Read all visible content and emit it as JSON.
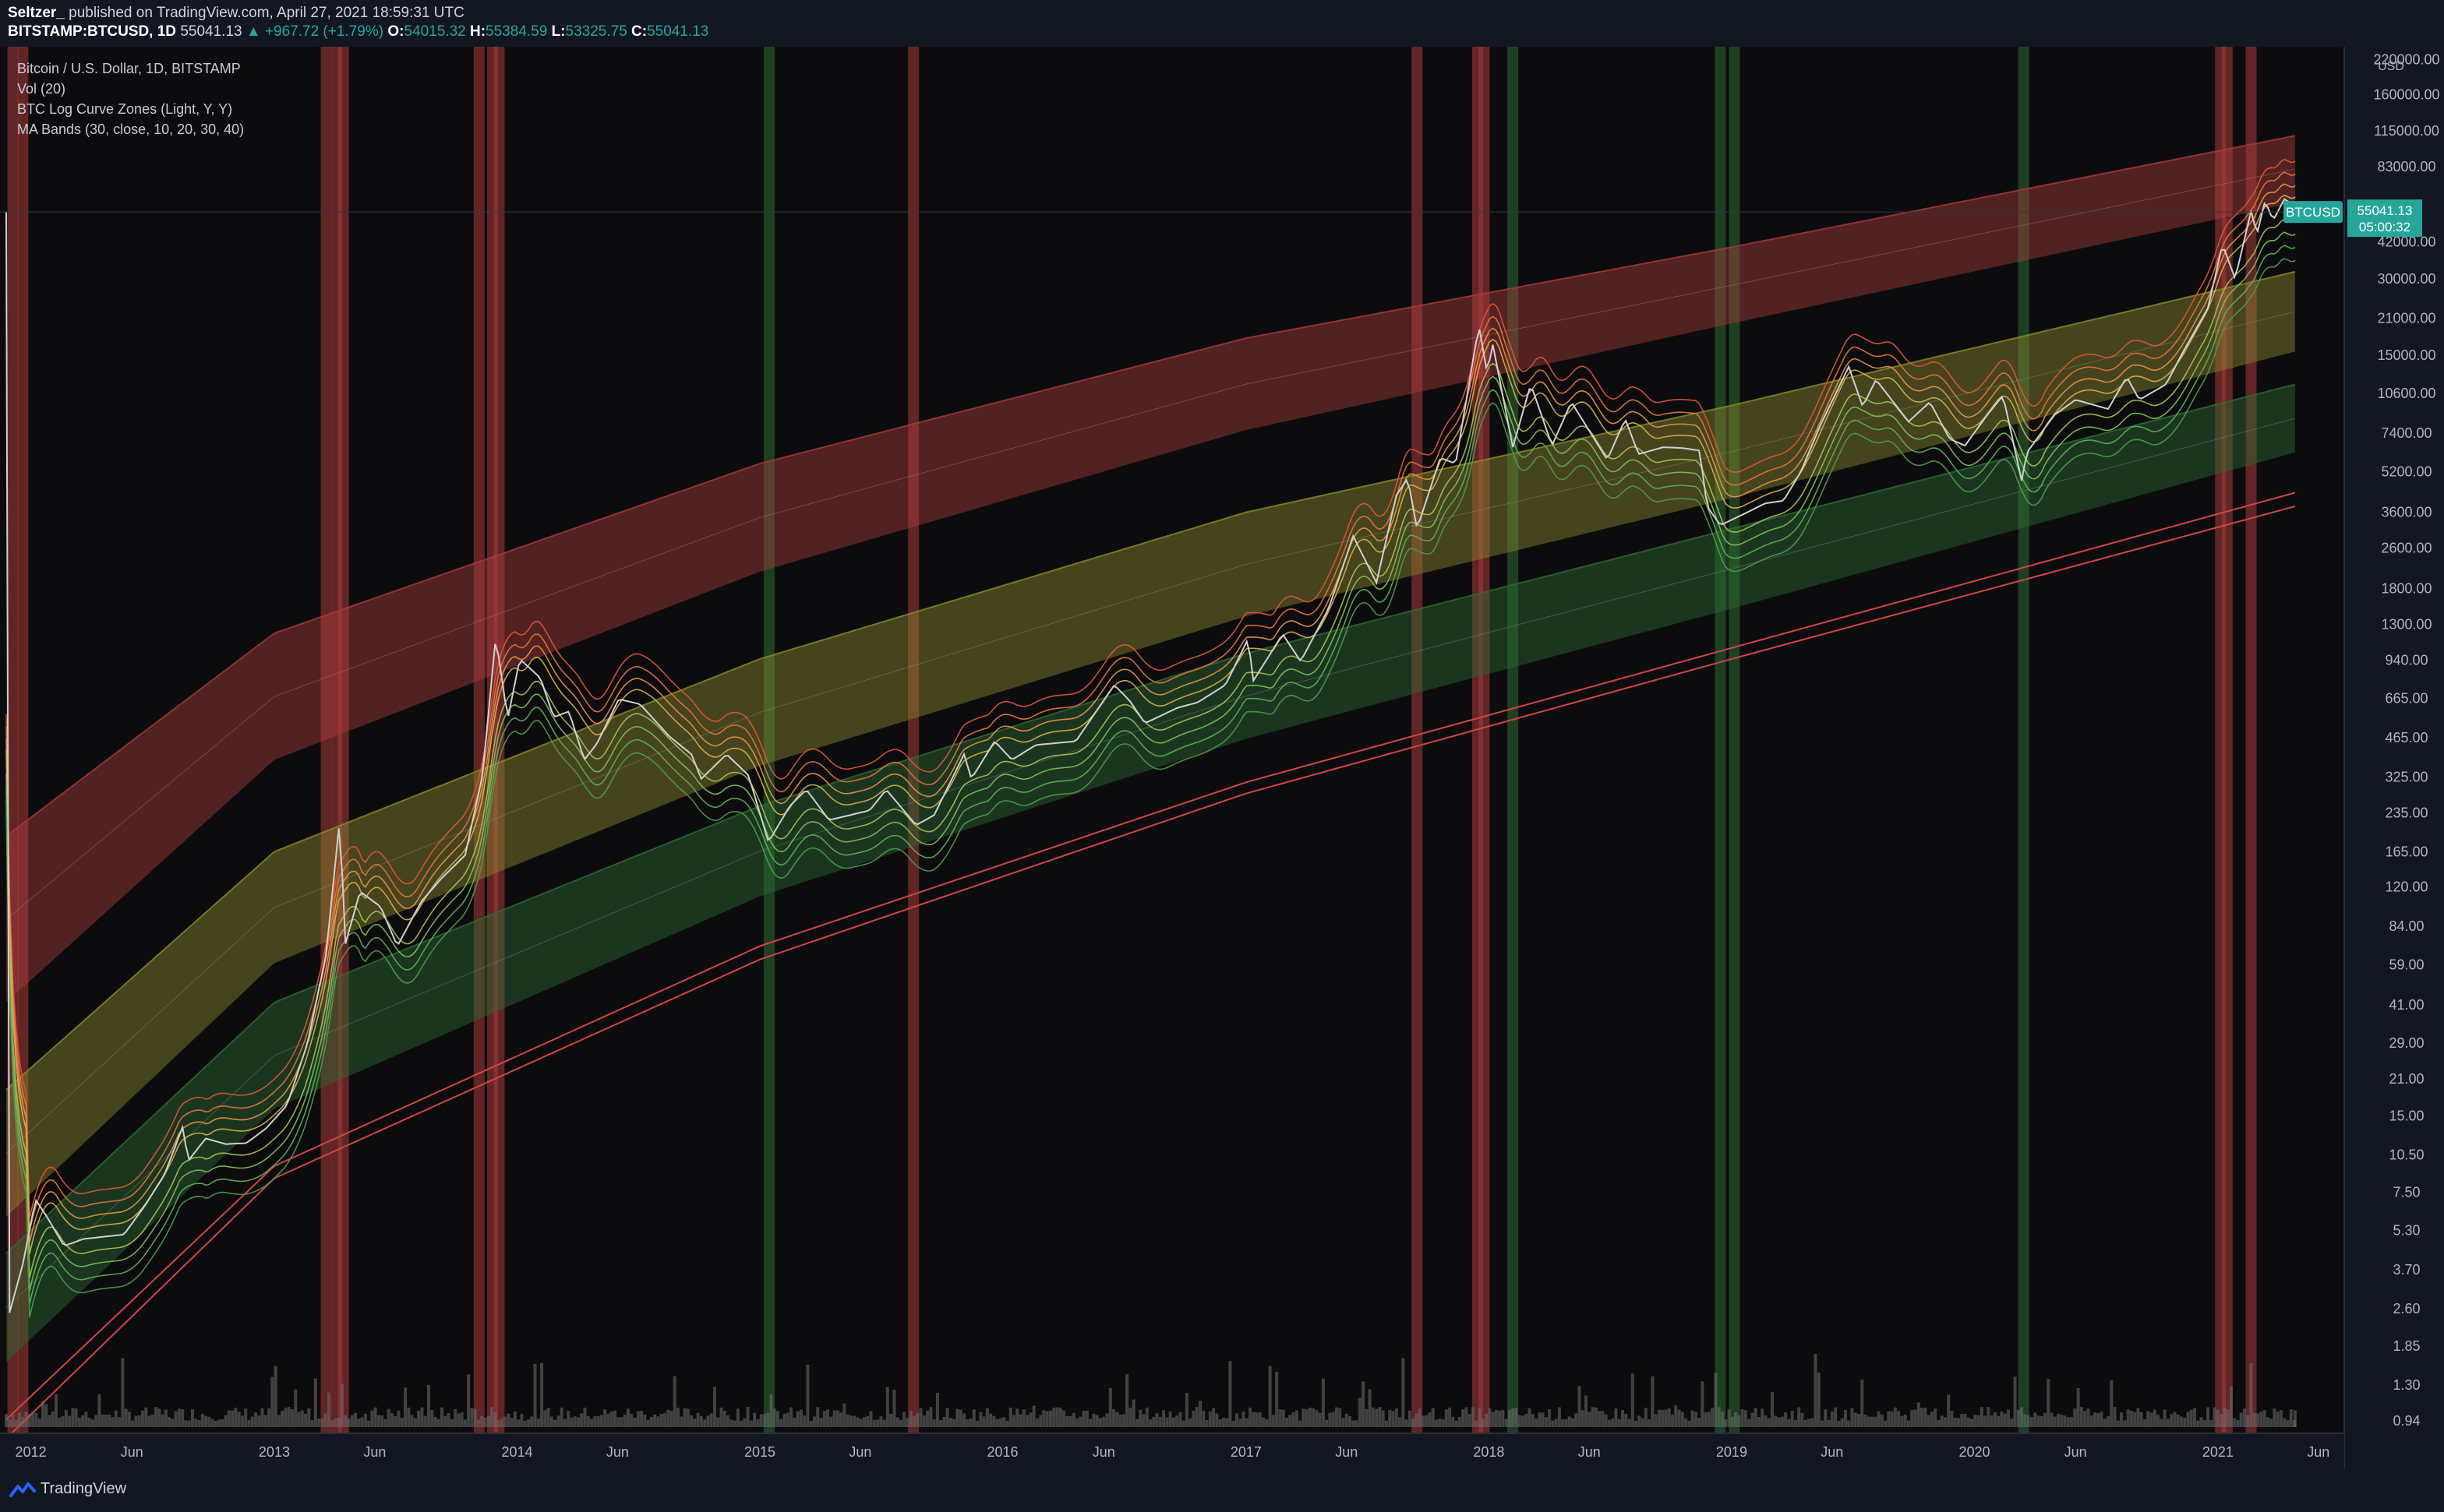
{
  "header": {
    "author": "Seltzer_",
    "published_text": "published on TradingView.com, April 27, 2021 18:59:31 UTC",
    "symbol": "BITSTAMP:BTCUSD, 1D",
    "last": "55041.13",
    "change": "▲ +967.72 (+1.79%)",
    "o_label": "O:",
    "o_value": "54015.32",
    "h_label": "H:",
    "h_value": "55384.59",
    "l_label": "L:",
    "l_value": "53325.75",
    "c_label": "C:",
    "c_value": "55041.13"
  },
  "legend": {
    "title": "Bitcoin / U.S. Dollar, 1D, BITSTAMP",
    "indicators": [
      "Vol (20)",
      "BTC Log Curve Zones (Light, Y, Y)",
      "MA Bands (30, close, 10, 20, 30, 40)"
    ]
  },
  "price_tag": {
    "symbol": "BTCUSD",
    "price": "55041.13",
    "countdown": "05:00:32"
  },
  "footer": {
    "brand": "TradingView"
  },
  "colors": {
    "background": "#131722",
    "red_zone": "#a83b3b",
    "yellow_zone": "#8c8a2e",
    "green_zone": "#2e6b33",
    "price_line": "#d0d0d0",
    "up": "#26a69a",
    "tag": "#26a69a"
  },
  "chart_data": {
    "type": "line",
    "y_scale": "log",
    "ylim": [
      0.9,
      230000
    ],
    "xlim": [
      "2011-11-25",
      "2021-07-10"
    ],
    "y_unit": "USD",
    "y_tick_labels": [
      {
        "v": 220000,
        "t": "220000.00"
      },
      {
        "v": 160000,
        "t": "160000.00"
      },
      {
        "v": 115000,
        "t": "115000.00"
      },
      {
        "v": 83000,
        "t": "83000.00"
      },
      {
        "v": 42000,
        "t": "42000.00"
      },
      {
        "v": 30000,
        "t": "30000.00"
      },
      {
        "v": 21000,
        "t": "21000.00"
      },
      {
        "v": 15000,
        "t": "15000.00"
      },
      {
        "v": 10600,
        "t": "10600.00"
      },
      {
        "v": 7400,
        "t": "7400.00"
      },
      {
        "v": 5200,
        "t": "5200.00"
      },
      {
        "v": 3600,
        "t": "3600.00"
      },
      {
        "v": 2600,
        "t": "2600.00"
      },
      {
        "v": 1800,
        "t": "1800.00"
      },
      {
        "v": 1300,
        "t": "1300.00"
      },
      {
        "v": 940,
        "t": "940.00"
      },
      {
        "v": 665,
        "t": "665.00"
      },
      {
        "v": 465,
        "t": "465.00"
      },
      {
        "v": 325,
        "t": "325.00"
      },
      {
        "v": 235,
        "t": "235.00"
      },
      {
        "v": 165,
        "t": "165.00"
      },
      {
        "v": 120,
        "t": "120.00"
      },
      {
        "v": 84,
        "t": "84.00"
      },
      {
        "v": 59,
        "t": "59.00"
      },
      {
        "v": 41,
        "t": "41.00"
      },
      {
        "v": 29,
        "t": "29.00"
      },
      {
        "v": 21,
        "t": "21.00"
      },
      {
        "v": 15,
        "t": "15.00"
      },
      {
        "v": 10.5,
        "t": "10.50"
      },
      {
        "v": 7.5,
        "t": "7.50"
      },
      {
        "v": 5.3,
        "t": "5.30"
      },
      {
        "v": 3.7,
        "t": "3.70"
      },
      {
        "v": 2.6,
        "t": "2.60"
      },
      {
        "v": 1.85,
        "t": "1.85"
      },
      {
        "v": 1.3,
        "t": "1.30"
      },
      {
        "v": 0.94,
        "t": "0.94"
      }
    ],
    "x_tick_labels": [
      {
        "d": "2012-01-01",
        "t": "2012"
      },
      {
        "d": "2012-06-01",
        "t": "Jun"
      },
      {
        "d": "2013-01-01",
        "t": "2013"
      },
      {
        "d": "2013-06-01",
        "t": "Jun"
      },
      {
        "d": "2014-01-01",
        "t": "2014"
      },
      {
        "d": "2014-06-01",
        "t": "Jun"
      },
      {
        "d": "2015-01-01",
        "t": "2015"
      },
      {
        "d": "2015-06-01",
        "t": "Jun"
      },
      {
        "d": "2016-01-01",
        "t": "2016"
      },
      {
        "d": "2016-06-01",
        "t": "Jun"
      },
      {
        "d": "2017-01-01",
        "t": "2017"
      },
      {
        "d": "2017-06-01",
        "t": "Jun"
      },
      {
        "d": "2018-01-01",
        "t": "2018"
      },
      {
        "d": "2018-06-01",
        "t": "Jun"
      },
      {
        "d": "2019-01-01",
        "t": "2019"
      },
      {
        "d": "2019-06-01",
        "t": "Jun"
      },
      {
        "d": "2020-01-01",
        "t": "2020"
      },
      {
        "d": "2020-06-01",
        "t": "Jun"
      },
      {
        "d": "2021-01-01",
        "t": "2021"
      },
      {
        "d": "2021-06-01",
        "t": "Jun"
      }
    ],
    "last_price": 55041.13,
    "series": [
      {
        "kind": "price",
        "points": [
          [
            "2011-11-28",
            2.4
          ],
          [
            "2011-12-20",
            3.9
          ],
          [
            "2012-01-08",
            7.0
          ],
          [
            "2012-01-25",
            6.0
          ],
          [
            "2012-02-20",
            4.6
          ],
          [
            "2012-03-20",
            4.9
          ],
          [
            "2012-04-20",
            5.0
          ],
          [
            "2012-05-20",
            5.1
          ],
          [
            "2012-06-20",
            6.6
          ],
          [
            "2012-07-20",
            8.8
          ],
          [
            "2012-08-16",
            13.5
          ],
          [
            "2012-08-25",
            10.0
          ],
          [
            "2012-09-20",
            12.2
          ],
          [
            "2012-10-20",
            11.6
          ],
          [
            "2012-11-20",
            11.7
          ],
          [
            "2012-12-20",
            13.4
          ],
          [
            "2013-01-20",
            16.5
          ],
          [
            "2013-02-20",
            29.0
          ],
          [
            "2013-03-20",
            65.0
          ],
          [
            "2013-04-10",
            230
          ],
          [
            "2013-04-17",
            70
          ],
          [
            "2013-05-10",
            115
          ],
          [
            "2013-06-10",
            100
          ],
          [
            "2013-07-05",
            70
          ],
          [
            "2013-08-10",
            105
          ],
          [
            "2013-09-10",
            130
          ],
          [
            "2013-10-15",
            160
          ],
          [
            "2013-11-10",
            330
          ],
          [
            "2013-11-30",
            1160
          ],
          [
            "2013-12-18",
            550
          ],
          [
            "2014-01-05",
            950
          ],
          [
            "2014-02-05",
            800
          ],
          [
            "2014-02-25",
            560
          ],
          [
            "2014-03-20",
            590
          ],
          [
            "2014-04-12",
            380
          ],
          [
            "2014-05-01",
            440
          ],
          [
            "2014-06-03",
            660
          ],
          [
            "2014-07-05",
            630
          ],
          [
            "2014-08-18",
            470
          ],
          [
            "2014-09-20",
            400
          ],
          [
            "2014-10-05",
            320
          ],
          [
            "2014-11-12",
            400
          ],
          [
            "2014-12-15",
            330
          ],
          [
            "2015-01-14",
            180
          ],
          [
            "2015-02-15",
            250
          ],
          [
            "2015-03-12",
            290
          ],
          [
            "2015-04-15",
            220
          ],
          [
            "2015-06-15",
            240
          ],
          [
            "2015-07-10",
            290
          ],
          [
            "2015-08-24",
            210
          ],
          [
            "2015-09-20",
            230
          ],
          [
            "2015-11-04",
            400
          ],
          [
            "2015-11-15",
            320
          ],
          [
            "2015-12-20",
            450
          ],
          [
            "2016-01-15",
            380
          ],
          [
            "2016-02-20",
            435
          ],
          [
            "2016-04-20",
            450
          ],
          [
            "2016-06-17",
            750
          ],
          [
            "2016-07-10",
            650
          ],
          [
            "2016-08-02",
            530
          ],
          [
            "2016-09-20",
            610
          ],
          [
            "2016-10-20",
            640
          ],
          [
            "2016-12-01",
            750
          ],
          [
            "2017-01-04",
            1140
          ],
          [
            "2017-01-12",
            780
          ],
          [
            "2017-02-25",
            1190
          ],
          [
            "2017-03-24",
            930
          ],
          [
            "2017-05-05",
            1500
          ],
          [
            "2017-06-11",
            2900
          ],
          [
            "2017-07-16",
            1900
          ],
          [
            "2017-08-15",
            4200
          ],
          [
            "2017-09-01",
            4900
          ],
          [
            "2017-09-15",
            3100
          ],
          [
            "2017-10-20",
            5900
          ],
          [
            "2017-11-12",
            5600
          ],
          [
            "2017-12-17",
            19600
          ],
          [
            "2017-12-30",
            12500
          ],
          [
            "2018-01-06",
            17000
          ],
          [
            "2018-02-06",
            6500
          ],
          [
            "2018-03-05",
            11500
          ],
          [
            "2018-04-06",
            6600
          ],
          [
            "2018-05-05",
            9800
          ],
          [
            "2018-06-28",
            5800
          ],
          [
            "2018-07-25",
            8400
          ],
          [
            "2018-08-14",
            6100
          ],
          [
            "2018-09-20",
            6500
          ],
          [
            "2018-10-20",
            6450
          ],
          [
            "2018-11-14",
            6300
          ],
          [
            "2018-11-25",
            3800
          ],
          [
            "2018-12-15",
            3200
          ],
          [
            "2019-01-20",
            3550
          ],
          [
            "2019-02-20",
            3900
          ],
          [
            "2019-03-20",
            4000
          ],
          [
            "2019-04-15",
            5200
          ],
          [
            "2019-05-15",
            8000
          ],
          [
            "2019-06-26",
            13500
          ],
          [
            "2019-07-17",
            9400
          ],
          [
            "2019-08-06",
            12000
          ],
          [
            "2019-09-24",
            8200
          ],
          [
            "2019-10-26",
            9800
          ],
          [
            "2019-11-25",
            7000
          ],
          [
            "2019-12-18",
            6600
          ],
          [
            "2020-01-20",
            8700
          ],
          [
            "2020-02-13",
            10400
          ],
          [
            "2020-03-12",
            4800
          ],
          [
            "2020-03-20",
            6200
          ],
          [
            "2020-04-30",
            8700
          ],
          [
            "2020-06-01",
            10000
          ],
          [
            "2020-07-20",
            9200
          ],
          [
            "2020-08-17",
            12300
          ],
          [
            "2020-09-05",
            10000
          ],
          [
            "2020-10-15",
            11500
          ],
          [
            "2020-11-10",
            15500
          ],
          [
            "2020-12-17",
            23000
          ],
          [
            "2021-01-08",
            41000
          ],
          [
            "2021-01-27",
            30000
          ],
          [
            "2021-02-21",
            57000
          ],
          [
            "2021-02-28",
            44000
          ],
          [
            "2021-03-13",
            61000
          ],
          [
            "2021-03-25",
            51000
          ],
          [
            "2021-04-14",
            64000
          ],
          [
            "2021-04-25",
            48000
          ],
          [
            "2021-04-27",
            55041
          ]
        ]
      }
    ],
    "zones": [
      {
        "name": "red",
        "upper": [
          [
            "2011-11-25",
            190
          ],
          [
            "2013-01-01",
            1200
          ],
          [
            "2015-01-01",
            5600
          ],
          [
            "2017-01-01",
            17500
          ],
          [
            "2019-01-01",
            40000
          ],
          [
            "2021-04-27",
            110000
          ]
        ],
        "lower": [
          [
            "2011-11-25",
            42
          ],
          [
            "2013-01-01",
            380
          ],
          [
            "2015-01-01",
            2100
          ],
          [
            "2017-01-01",
            7600
          ],
          [
            "2019-01-01",
            20000
          ],
          [
            "2021-04-27",
            60000
          ]
        ]
      },
      {
        "name": "yellow",
        "upper": [
          [
            "2011-11-25",
            19
          ],
          [
            "2013-01-01",
            165
          ],
          [
            "2015-01-01",
            950
          ],
          [
            "2017-01-01",
            3600
          ],
          [
            "2019-01-01",
            9500
          ],
          [
            "2021-04-27",
            32000
          ]
        ],
        "lower": [
          [
            "2011-11-25",
            6
          ],
          [
            "2013-01-01",
            60
          ],
          [
            "2015-01-01",
            360
          ],
          [
            "2017-01-01",
            1400
          ],
          [
            "2019-01-01",
            4100
          ],
          [
            "2021-04-27",
            15500
          ]
        ]
      },
      {
        "name": "green",
        "upper": [
          [
            "2011-11-25",
            4.3
          ],
          [
            "2013-01-01",
            42
          ],
          [
            "2015-01-01",
            250
          ],
          [
            "2017-01-01",
            1000
          ],
          [
            "2019-01-01",
            3100
          ],
          [
            "2021-04-27",
            11500
          ]
        ],
        "lower": [
          [
            "2011-11-25",
            1.6
          ],
          [
            "2013-01-01",
            16
          ],
          [
            "2015-01-01",
            110
          ],
          [
            "2017-01-01",
            460
          ],
          [
            "2019-01-01",
            1500
          ],
          [
            "2021-04-27",
            6200
          ]
        ]
      }
    ],
    "support_lines": [
      [
        [
          "2011-11-25",
          0.95
        ],
        [
          "2013-01-01",
          9.5
        ],
        [
          "2015-01-01",
          70
        ],
        [
          "2017-01-01",
          310
        ],
        [
          "2019-01-01",
          1050
        ],
        [
          "2021-04-27",
          4300
        ]
      ],
      [
        [
          "2011-11-25",
          0.8
        ],
        [
          "2013-01-01",
          8.5
        ],
        [
          "2015-01-01",
          62
        ],
        [
          "2017-01-01",
          280
        ],
        [
          "2019-01-01",
          950
        ],
        [
          "2021-04-27",
          3800
        ]
      ]
    ],
    "vertical_bands": [
      {
        "d": "2011-12-05",
        "color": "red"
      },
      {
        "d": "2011-12-20",
        "color": "red"
      },
      {
        "d": "2013-03-20",
        "color": "red"
      },
      {
        "d": "2013-04-05",
        "color": "red"
      },
      {
        "d": "2013-04-15",
        "color": "red"
      },
      {
        "d": "2013-11-05",
        "color": "red"
      },
      {
        "d": "2013-11-25",
        "color": "red"
      },
      {
        "d": "2013-12-05",
        "color": "red"
      },
      {
        "d": "2015-01-15",
        "color": "green"
      },
      {
        "d": "2015-08-20",
        "color": "red"
      },
      {
        "d": "2017-09-15",
        "color": "red"
      },
      {
        "d": "2017-12-15",
        "color": "red"
      },
      {
        "d": "2017-12-25",
        "color": "red"
      },
      {
        "d": "2018-02-06",
        "color": "green"
      },
      {
        "d": "2018-12-15",
        "color": "green"
      },
      {
        "d": "2019-01-05",
        "color": "green"
      },
      {
        "d": "2020-03-15",
        "color": "green"
      },
      {
        "d": "2021-01-05",
        "color": "red"
      },
      {
        "d": "2021-01-15",
        "color": "red"
      },
      {
        "d": "2021-02-20",
        "color": "red"
      }
    ]
  }
}
